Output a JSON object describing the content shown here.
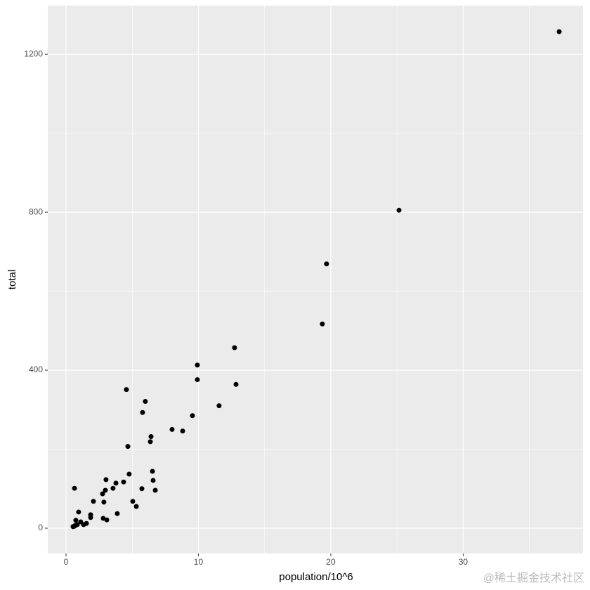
{
  "chart_data": {
    "type": "scatter",
    "x_label": "population/10^6",
    "y_label": "total",
    "x": [
      37.25,
      25.15,
      19.68,
      19.36,
      12.73,
      12.84,
      11.56,
      9.92,
      9.92,
      9.55,
      8.81,
      8.01,
      4.56,
      5.99,
      5.78,
      6.42,
      6.37,
      4.67,
      6.53,
      6.58,
      6.74,
      5.73,
      4.77,
      4.35,
      3.77,
      3.55,
      3.02,
      2.97,
      2.76,
      2.86,
      5.04,
      5.31,
      3.87,
      2.81,
      3.08,
      2.07,
      0.64,
      0.95,
      1.86,
      1.86,
      0.74,
      1.11,
      1.54,
      1.33,
      0.85,
      0.64,
      0.53,
      0.69
    ],
    "values": [
      1257,
      805,
      669,
      517,
      457,
      364,
      310,
      413,
      376,
      285,
      246,
      250,
      351,
      321,
      293,
      232,
      219,
      207,
      144,
      121,
      96,
      100,
      137,
      117,
      114,
      101,
      123,
      96,
      87,
      66,
      68,
      55,
      37,
      25,
      21,
      68,
      101,
      41,
      34,
      27,
      20,
      16,
      12,
      9,
      9,
      5,
      4,
      7
    ],
    "color": "#000000",
    "xlim": [
      -1.38,
      39.05
    ],
    "ylim": [
      -64,
      1323
    ],
    "xticks": [
      0,
      10,
      20,
      30
    ],
    "yticks": [
      0,
      400,
      800,
      1200
    ],
    "x_minor_grid": [
      5,
      15,
      25,
      35
    ],
    "y_minor_grid": [
      200,
      600,
      1000
    ],
    "grid": true,
    "watermark": "@稀土掘金技术社区"
  }
}
